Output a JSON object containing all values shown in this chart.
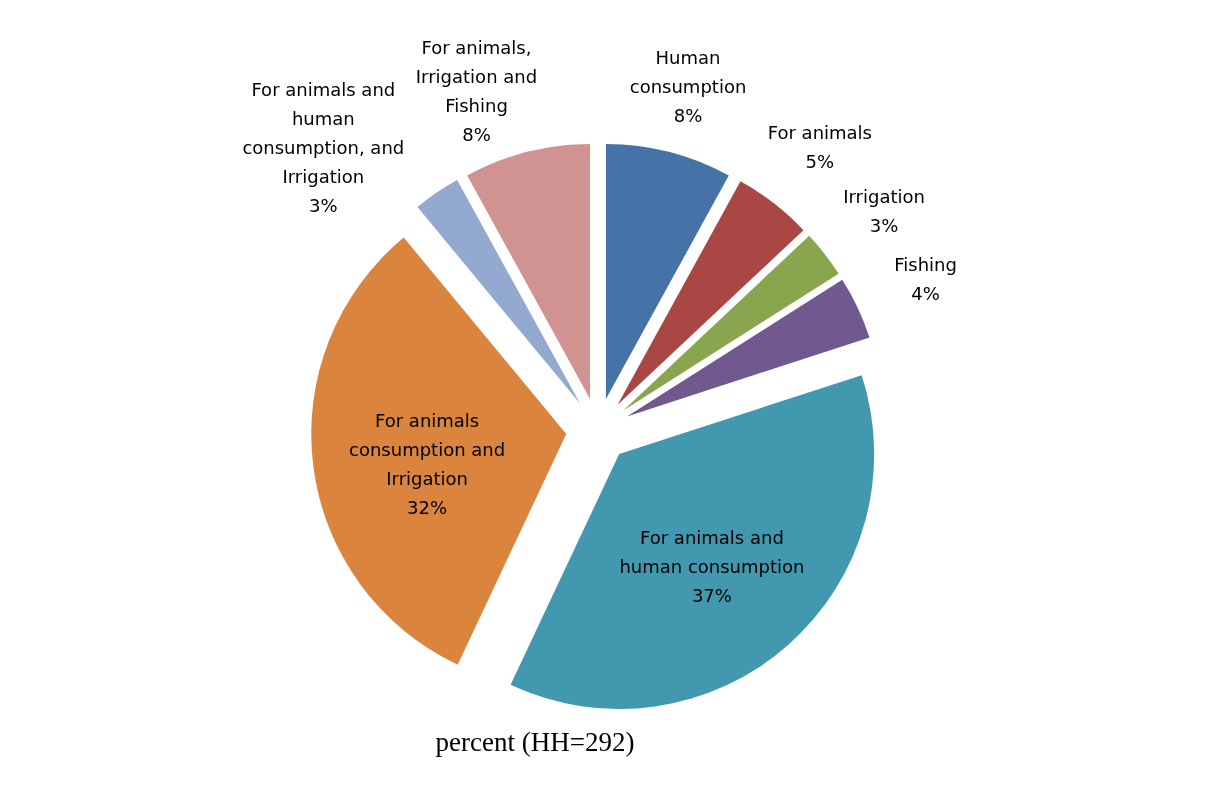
{
  "chart_data": {
    "type": "pie",
    "title": "percent (HH=292)",
    "categories": [
      "Human consumption",
      "For animals",
      "Irrigation",
      "Fishing",
      "For animals and human consumption",
      "For animals consumption and Irrigation",
      "For animals and human consumption, and Irrigation",
      "For animals, Irrigation and Fishing"
    ],
    "values": [
      8,
      5,
      3,
      4,
      37,
      32,
      3,
      8
    ],
    "value_labels": [
      "8%",
      "5%",
      "3%",
      "4%",
      "37%",
      "32%",
      "3%",
      "8%"
    ],
    "colors": [
      "#4572a7",
      "#aa4643",
      "#89a54e",
      "#71588f",
      "#4198af",
      "#db843d",
      "#93a9cf",
      "#d19392"
    ]
  }
}
